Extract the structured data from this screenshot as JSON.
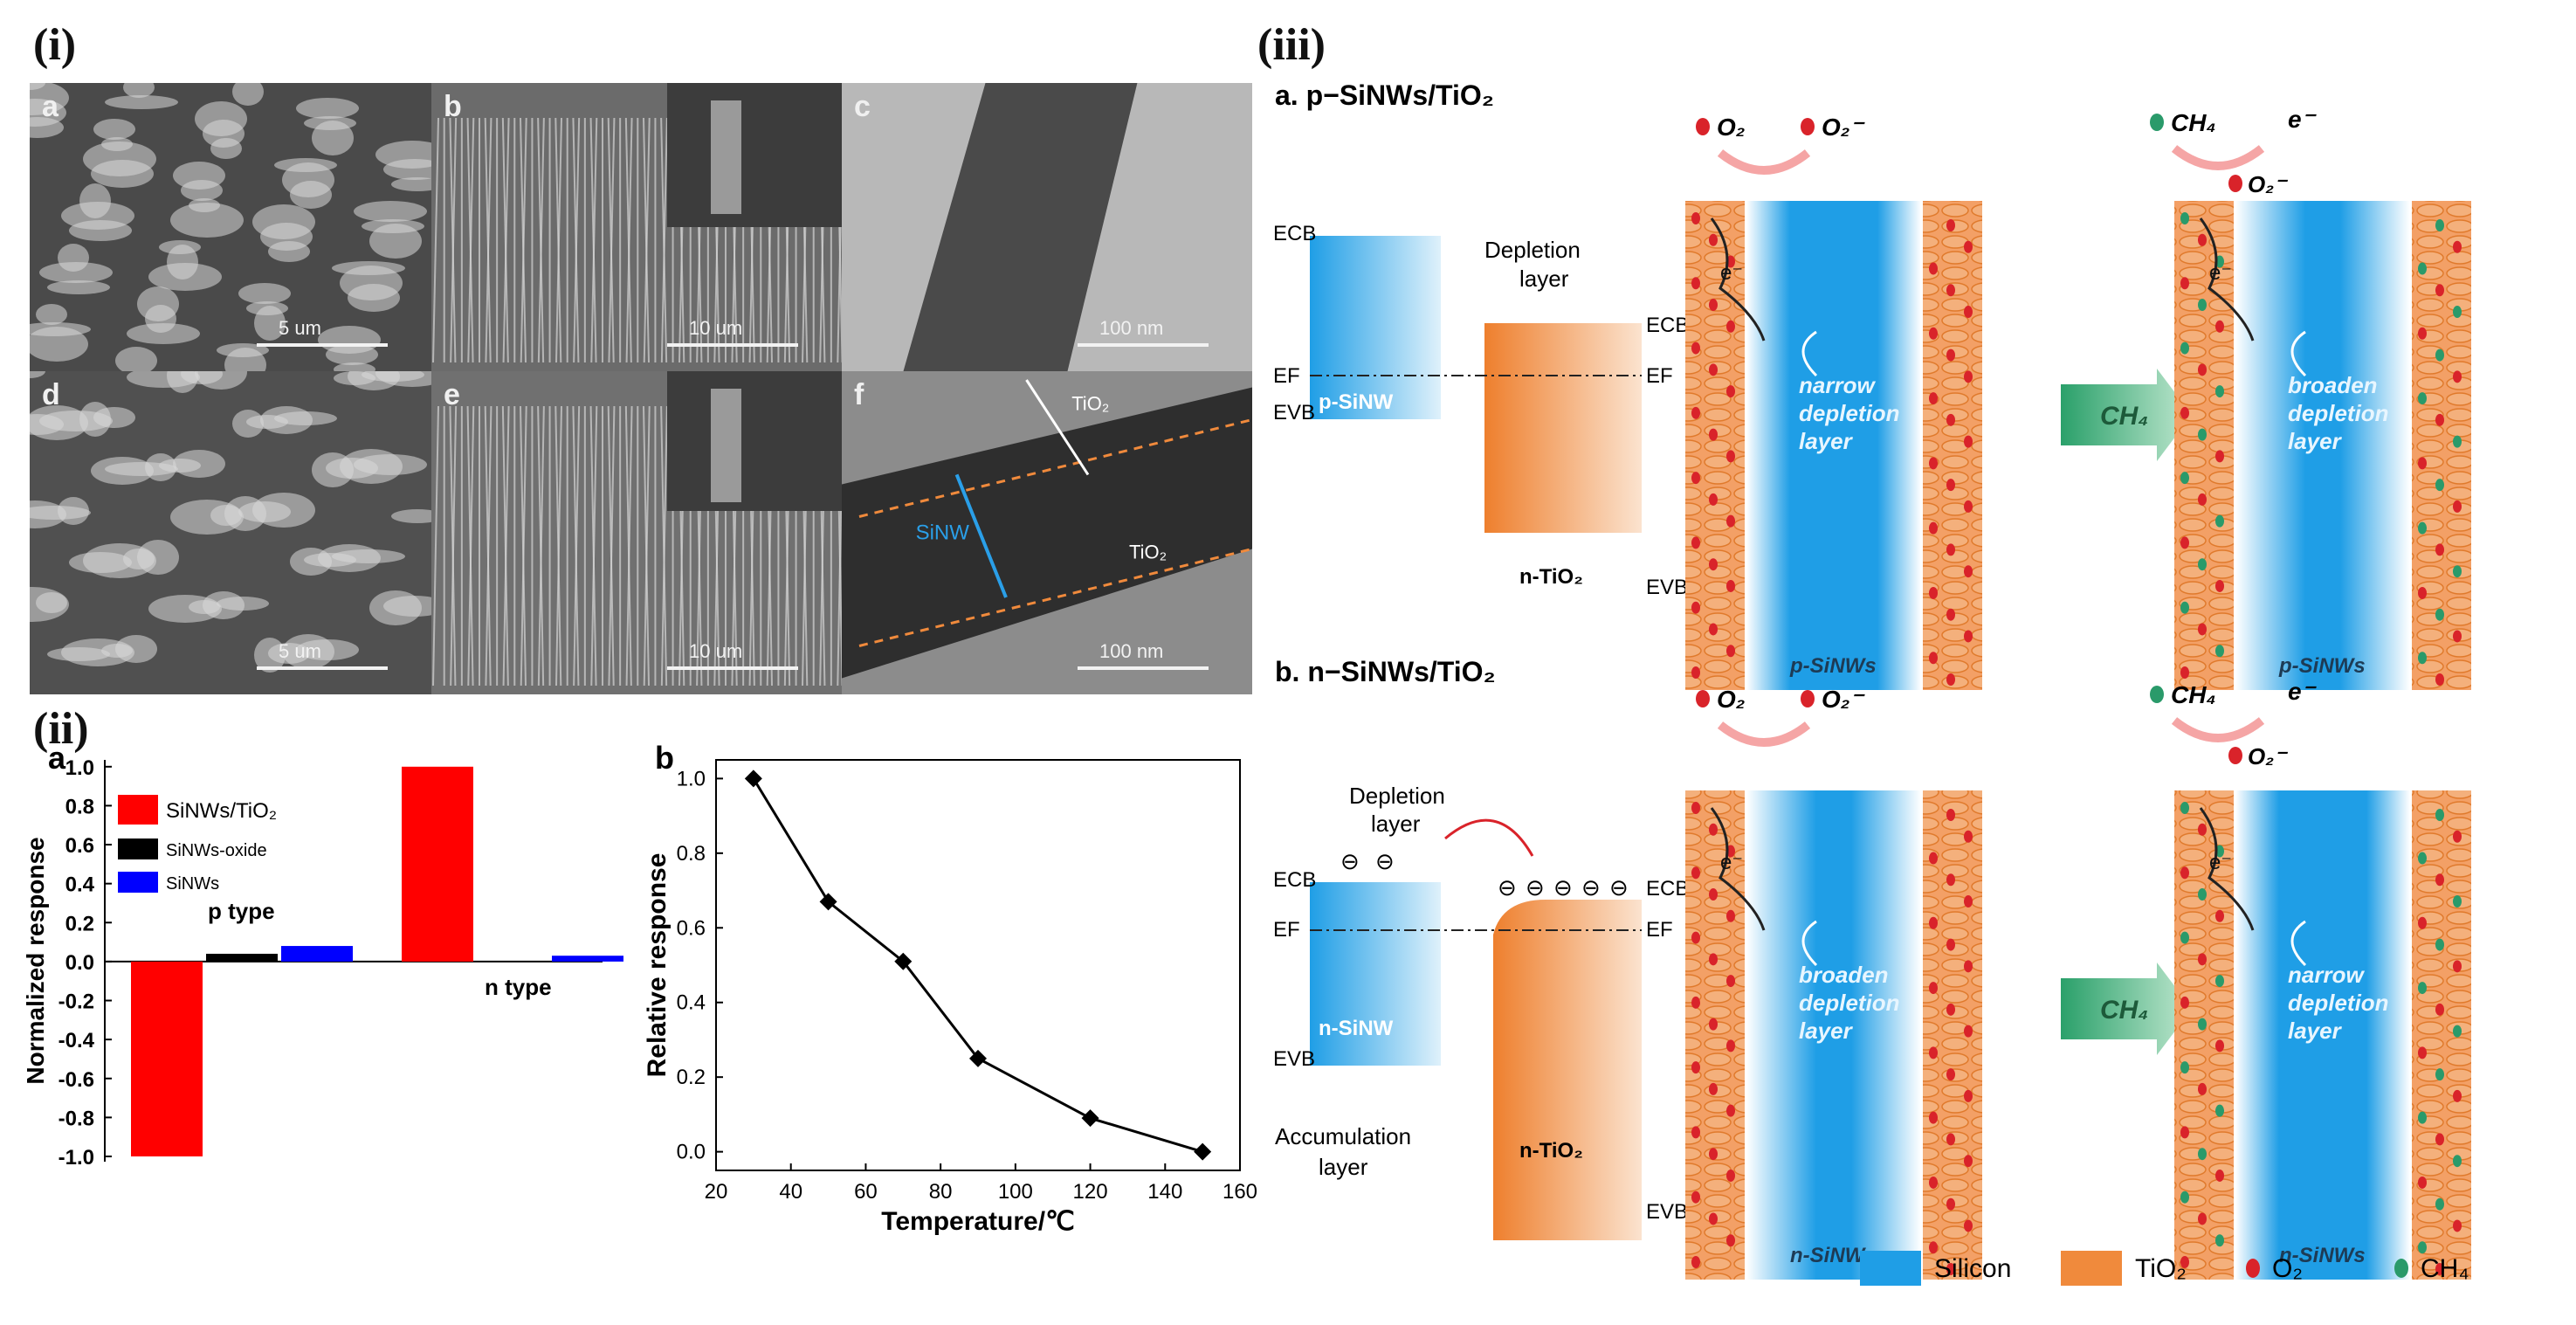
{
  "figure": {
    "labels": {
      "i": "(i)",
      "ii": "(ii)",
      "iii": "(iii)"
    }
  },
  "sem": {
    "panels": [
      {
        "letter": "a",
        "scale": "5 um"
      },
      {
        "letter": "b",
        "scale": "10 um"
      },
      {
        "letter": "c",
        "scale": "100 nm"
      },
      {
        "letter": "d",
        "scale": "5 um"
      },
      {
        "letter": "e",
        "scale": "10 um"
      },
      {
        "letter": "f",
        "scale": "100 nm"
      }
    ],
    "tem_labels": {
      "tio2_top": "TiO₂",
      "sinw": "SiNW",
      "tio2_bottom": "TiO₂"
    }
  },
  "chart_data": [
    {
      "type": "bar",
      "panel": "a",
      "ylabel": "Normalized response",
      "ylim": [
        -1.0,
        1.0
      ],
      "yticks": [
        "-1.0",
        "-0.8",
        "-0.6",
        "-0.4",
        "-0.2",
        "0.0",
        "0.2",
        "0.4",
        "0.6",
        "0.8",
        "1.0"
      ],
      "groups": [
        {
          "name": "p type",
          "values": [
            -1.0,
            0.04,
            0.08
          ]
        },
        {
          "name": "n type",
          "values": [
            1.0,
            0.0,
            0.03
          ]
        }
      ],
      "series": [
        {
          "name": "SiNWs/TiO₂",
          "color": "#ff0000"
        },
        {
          "name": "SiNWs-oxide",
          "color": "#000000"
        },
        {
          "name": "SiNWs",
          "color": "#0000ff"
        }
      ]
    },
    {
      "type": "line",
      "panel": "b",
      "xlabel": "Temperature/℃",
      "ylabel": "Relative response",
      "x": [
        30,
        50,
        70,
        90,
        120,
        150
      ],
      "y": [
        1.0,
        0.67,
        0.51,
        0.25,
        0.09,
        0.0
      ],
      "xlim": [
        20,
        160
      ],
      "ylim": [
        -0.05,
        1.05
      ],
      "xticks": [
        "20",
        "40",
        "60",
        "80",
        "100",
        "120",
        "140",
        "160"
      ],
      "yticks": [
        "0.0",
        "0.2",
        "0.4",
        "0.6",
        "0.8",
        "1.0"
      ]
    }
  ],
  "diagram": {
    "a": {
      "title": "a. p−SiNWs/TiO₂",
      "ecb": "ECB",
      "ef": "EF",
      "evb": "EVB",
      "ecb_r": "ECB",
      "ef_r": "EF",
      "evb_r": "EVB",
      "depletion": "Depletion",
      "layer": "layer",
      "p_sinw": "p-SiNW",
      "n_tio2": "n-TiO₂",
      "left_wire": {
        "l1": "narrow",
        "l2": "depletion",
        "l3": "layer",
        "base": "p-SiNWs"
      },
      "right_wire": {
        "l1": "broaden",
        "l2": "depletion",
        "l3": "layer",
        "base": "p-SiNWs"
      }
    },
    "b": {
      "title": "b. n−SiNWs/TiO₂",
      "ecb": "ECB",
      "ef": "EF",
      "evb": "EVB",
      "ecb_r": "ECB",
      "ef_r": "EF",
      "evb_r": "EVB",
      "depletion": "Depletion",
      "layer": "layer",
      "n_sinw": "n-SiNW",
      "n_tio2": "n-TiO₂",
      "accum1": "Accumulation",
      "accum2": "layer",
      "left_wire": {
        "l1": "broaden",
        "l2": "depletion",
        "l3": "layer",
        "base": "n-SiNWs"
      },
      "right_wire": {
        "l1": "narrow",
        "l2": "depletion",
        "l3": "layer",
        "base": "n-SiNWs"
      }
    },
    "gas": {
      "o2": "O₂",
      "o2minus": "O₂",
      "ch4": "CH₄",
      "electron": "e",
      "arrow": "CH₄"
    },
    "legend": [
      {
        "label": "Silicon",
        "color": "#1f9ee6"
      },
      {
        "label": "TiO₂",
        "color": "#f08a3c"
      },
      {
        "label": "O₂",
        "color": "#d9232a"
      },
      {
        "label": "CH₄",
        "color": "#2a9a6a"
      }
    ]
  }
}
